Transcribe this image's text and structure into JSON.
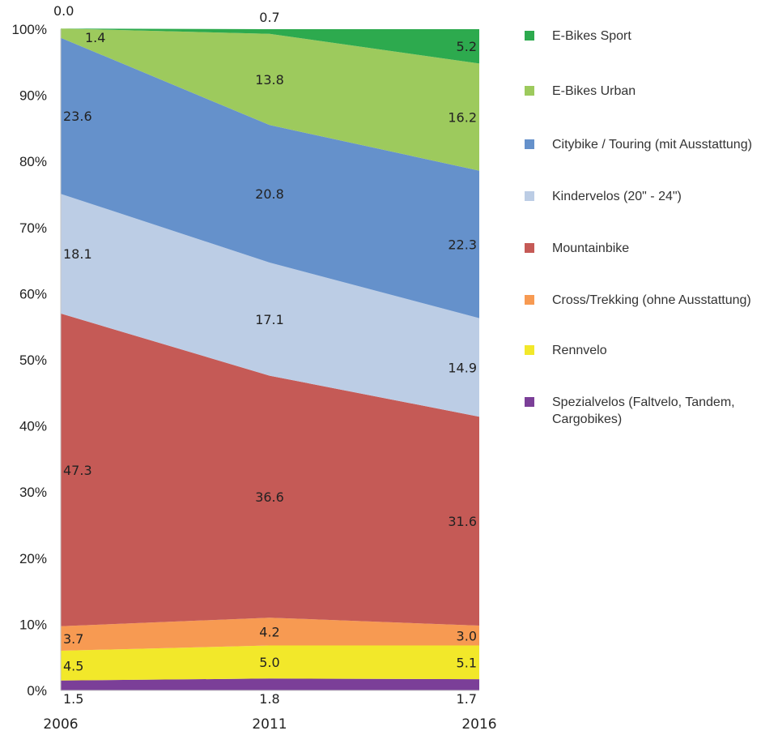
{
  "chart_data": {
    "type": "area",
    "stacked": true,
    "normalized": true,
    "x": [
      "2006",
      "2011",
      "2016"
    ],
    "ylim": [
      0,
      100
    ],
    "yticks": [
      "0%",
      "10%",
      "20%",
      "30%",
      "40%",
      "50%",
      "60%",
      "70%",
      "80%",
      "90%",
      "100%"
    ],
    "legend_position": "right",
    "series": [
      {
        "name": "Spezialvelos (Faltvelo, Tandem, Cargobikes)",
        "color": "#7b3f98",
        "values": [
          1.5,
          1.8,
          1.7
        ],
        "labels": [
          "1.5",
          "1.8",
          "1.7"
        ]
      },
      {
        "name": "Rennvelo",
        "color": "#f2e82a",
        "values": [
          4.5,
          5.0,
          5.1
        ],
        "labels": [
          "4.5",
          "5.0",
          "5.1"
        ]
      },
      {
        "name": "Cross/Trekking (ohne Ausstattung)",
        "color": "#f79a52",
        "values": [
          3.7,
          4.2,
          3.0
        ],
        "labels": [
          "3.7",
          "4.2",
          "3.0"
        ]
      },
      {
        "name": "Mountainbike",
        "color": "#c55a56",
        "values": [
          47.3,
          36.6,
          31.6
        ],
        "labels": [
          "47.3",
          "36.6",
          "31.6"
        ]
      },
      {
        "name": "Kindervelos (20\" - 24\")",
        "color": "#bccde5",
        "values": [
          18.1,
          17.1,
          14.9
        ],
        "labels": [
          "18.1",
          "17.1",
          "14.9"
        ]
      },
      {
        "name": "Citybike / Touring (mit Ausstattung)",
        "color": "#6591cb",
        "values": [
          23.6,
          20.8,
          22.3
        ],
        "labels": [
          "23.6",
          "20.8",
          "22.3"
        ]
      },
      {
        "name": "E-Bikes Urban",
        "color": "#9dca5d",
        "values": [
          1.4,
          13.8,
          16.2
        ],
        "labels": [
          "1.4",
          "13.8",
          "16.2"
        ]
      },
      {
        "name": "E-Bikes Sport",
        "color": "#2daa4e",
        "values": [
          0.0,
          0.7,
          5.2
        ],
        "labels": [
          "0.0",
          "0.7",
          "5.2"
        ]
      }
    ]
  }
}
